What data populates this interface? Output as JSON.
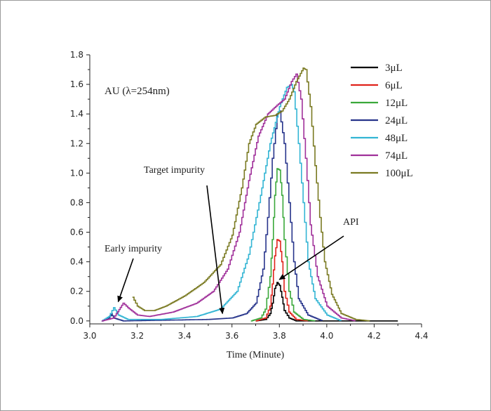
{
  "chart_data": {
    "type": "line",
    "xlabel": "Time (Minute)",
    "ylabel_annotation": "AU (λ=254nm)",
    "xlim": [
      3.0,
      4.4
    ],
    "ylim": [
      -0.02,
      1.8
    ],
    "xticks": [
      "3.0",
      "3.2",
      "3.4",
      "3.6",
      "3.8",
      "4.0",
      "4.2",
      "4.4"
    ],
    "yticks": [
      "0.0",
      "0.2",
      "0.4",
      "0.6",
      "0.8",
      "1.0",
      "1.2",
      "1.4",
      "1.6",
      "1.8"
    ],
    "grid": false,
    "legend_position": "top-right",
    "annotations": [
      {
        "text": "Early impurity",
        "arrow_to": [
          3.12,
          0.13
        ]
      },
      {
        "text": "Target impurity",
        "arrow_to": [
          3.56,
          0.05
        ]
      },
      {
        "text": "API",
        "arrow_to": [
          3.8,
          0.28
        ]
      }
    ],
    "series": [
      {
        "name": "3μL",
        "color": "#000000",
        "points": [
          [
            3.7,
            0.0
          ],
          [
            3.74,
            0.01
          ],
          [
            3.76,
            0.05
          ],
          [
            3.77,
            0.12
          ],
          [
            3.78,
            0.22
          ],
          [
            3.79,
            0.26
          ],
          [
            3.8,
            0.24
          ],
          [
            3.81,
            0.16
          ],
          [
            3.82,
            0.07
          ],
          [
            3.84,
            0.02
          ],
          [
            3.87,
            0.0
          ],
          [
            4.3,
            0.0
          ]
        ]
      },
      {
        "name": "6μL",
        "color": "#e0231b",
        "points": [
          [
            3.7,
            0.0
          ],
          [
            3.74,
            0.02
          ],
          [
            3.76,
            0.1
          ],
          [
            3.77,
            0.25
          ],
          [
            3.78,
            0.44
          ],
          [
            3.79,
            0.55
          ],
          [
            3.8,
            0.54
          ],
          [
            3.81,
            0.4
          ],
          [
            3.82,
            0.2
          ],
          [
            3.84,
            0.06
          ],
          [
            3.87,
            0.01
          ],
          [
            3.92,
            0.0
          ]
        ]
      },
      {
        "name": "12μL",
        "color": "#3aa83a",
        "points": [
          [
            3.68,
            0.0
          ],
          [
            3.72,
            0.02
          ],
          [
            3.74,
            0.08
          ],
          [
            3.76,
            0.3
          ],
          [
            3.77,
            0.55
          ],
          [
            3.78,
            0.85
          ],
          [
            3.79,
            1.03
          ],
          [
            3.8,
            1.02
          ],
          [
            3.81,
            0.85
          ],
          [
            3.82,
            0.55
          ],
          [
            3.84,
            0.2
          ],
          [
            3.86,
            0.06
          ],
          [
            3.9,
            0.01
          ],
          [
            3.95,
            0.0
          ]
        ]
      },
      {
        "name": "24μL",
        "color": "#27348b",
        "points": [
          [
            3.05,
            0.0
          ],
          [
            3.08,
            0.02
          ],
          [
            3.09,
            0.05
          ],
          [
            3.1,
            0.02
          ],
          [
            3.14,
            0.0
          ],
          [
            3.5,
            0.01
          ],
          [
            3.6,
            0.02
          ],
          [
            3.66,
            0.05
          ],
          [
            3.7,
            0.12
          ],
          [
            3.73,
            0.35
          ],
          [
            3.75,
            0.7
          ],
          [
            3.77,
            1.1
          ],
          [
            3.79,
            1.4
          ],
          [
            3.8,
            1.42
          ],
          [
            3.82,
            1.2
          ],
          [
            3.84,
            0.8
          ],
          [
            3.86,
            0.4
          ],
          [
            3.88,
            0.15
          ],
          [
            3.92,
            0.04
          ],
          [
            3.98,
            0.0
          ]
        ]
      },
      {
        "name": "48μL",
        "color": "#33b5d4",
        "points": [
          [
            3.05,
            0.0
          ],
          [
            3.08,
            0.03
          ],
          [
            3.1,
            0.09
          ],
          [
            3.12,
            0.04
          ],
          [
            3.16,
            0.01
          ],
          [
            3.3,
            0.01
          ],
          [
            3.45,
            0.03
          ],
          [
            3.55,
            0.08
          ],
          [
            3.62,
            0.2
          ],
          [
            3.67,
            0.45
          ],
          [
            3.72,
            0.85
          ],
          [
            3.76,
            1.2
          ],
          [
            3.8,
            1.45
          ],
          [
            3.83,
            1.58
          ],
          [
            3.85,
            1.6
          ],
          [
            3.86,
            1.55
          ],
          [
            3.88,
            1.2
          ],
          [
            3.9,
            0.8
          ],
          [
            3.92,
            0.4
          ],
          [
            3.95,
            0.15
          ],
          [
            4.0,
            0.04
          ],
          [
            4.06,
            0.0
          ]
        ]
      },
      {
        "name": "74μL",
        "color": "#a0309a",
        "points": [
          [
            3.05,
            0.0
          ],
          [
            3.1,
            0.02
          ],
          [
            3.14,
            0.12
          ],
          [
            3.16,
            0.09
          ],
          [
            3.2,
            0.04
          ],
          [
            3.25,
            0.03
          ],
          [
            3.35,
            0.06
          ],
          [
            3.45,
            0.12
          ],
          [
            3.52,
            0.2
          ],
          [
            3.58,
            0.35
          ],
          [
            3.63,
            0.6
          ],
          [
            3.67,
            0.95
          ],
          [
            3.71,
            1.25
          ],
          [
            3.75,
            1.4
          ],
          [
            3.79,
            1.46
          ],
          [
            3.82,
            1.5
          ],
          [
            3.85,
            1.62
          ],
          [
            3.87,
            1.67
          ],
          [
            3.89,
            1.5
          ],
          [
            3.91,
            1.1
          ],
          [
            3.93,
            0.65
          ],
          [
            3.96,
            0.3
          ],
          [
            4.0,
            0.1
          ],
          [
            4.06,
            0.02
          ],
          [
            4.12,
            0.0
          ]
        ]
      },
      {
        "name": "100μL",
        "color": "#7a7a22",
        "points": [
          [
            3.18,
            0.16
          ],
          [
            3.2,
            0.1
          ],
          [
            3.23,
            0.07
          ],
          [
            3.27,
            0.07
          ],
          [
            3.32,
            0.1
          ],
          [
            3.4,
            0.17
          ],
          [
            3.48,
            0.26
          ],
          [
            3.55,
            0.38
          ],
          [
            3.6,
            0.58
          ],
          [
            3.64,
            0.9
          ],
          [
            3.67,
            1.2
          ],
          [
            3.7,
            1.33
          ],
          [
            3.74,
            1.38
          ],
          [
            3.78,
            1.39
          ],
          [
            3.81,
            1.42
          ],
          [
            3.84,
            1.5
          ],
          [
            3.87,
            1.62
          ],
          [
            3.9,
            1.71
          ],
          [
            3.91,
            1.7
          ],
          [
            3.93,
            1.45
          ],
          [
            3.95,
            1.05
          ],
          [
            3.97,
            0.7
          ],
          [
            3.99,
            0.4
          ],
          [
            4.02,
            0.18
          ],
          [
            4.06,
            0.05
          ],
          [
            4.12,
            0.01
          ],
          [
            4.18,
            0.0
          ]
        ]
      }
    ]
  }
}
